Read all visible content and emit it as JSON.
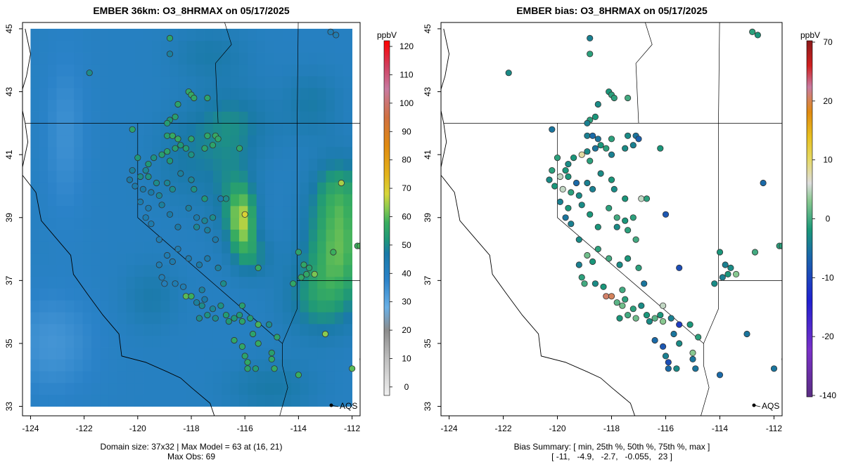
{
  "chart_data": [
    {
      "type": "heatmap",
      "title": "EMBER 36km: O3_8HRMAX on 05/17/2025",
      "xlim": [
        -124.3,
        -111.7
      ],
      "ylim": [
        32.7,
        45.2
      ],
      "x_ticks": [
        -124,
        -122,
        -120,
        -118,
        -116,
        -114,
        -112
      ],
      "x_tick_labels": [
        "-124",
        "-122",
        "-120",
        "-118",
        "-116",
        "-114",
        "-112"
      ],
      "y_ticks": [
        33,
        35,
        37,
        39,
        41,
        43,
        45
      ],
      "y_tick_labels": [
        "33",
        "35",
        "37",
        "39",
        "41",
        "43",
        "45"
      ],
      "colorbar": {
        "unit": "ppbV",
        "range": [
          -3,
          122
        ],
        "ticks": [
          0,
          10,
          20,
          30,
          40,
          50,
          60,
          70,
          80,
          90,
          100,
          110,
          120
        ],
        "tick_labels": [
          "0",
          "10",
          "20",
          "30",
          "40",
          "50",
          "60",
          "70",
          "80",
          "90",
          "100",
          "110",
          "120"
        ],
        "stops": [
          [
            -3,
            "#f0f0f0"
          ],
          [
            10,
            "#bebebe"
          ],
          [
            20,
            "#8c8c8c"
          ],
          [
            28,
            "#6ab0e6"
          ],
          [
            38,
            "#2a82c8"
          ],
          [
            47,
            "#1a7aa8"
          ],
          [
            52,
            "#1f9878"
          ],
          [
            58,
            "#3aae5e"
          ],
          [
            63,
            "#8acb50"
          ],
          [
            68,
            "#d7d63a"
          ],
          [
            75,
            "#e3b21a"
          ],
          [
            85,
            "#e08a10"
          ],
          [
            95,
            "#d07040"
          ],
          [
            105,
            "#c87aa0"
          ],
          [
            113,
            "#d04060"
          ],
          [
            122,
            "#ff0000"
          ]
        ]
      },
      "model_field": {
        "base_value": 40,
        "hotspots": [
          {
            "lon": -116.1,
            "lat": 38.9,
            "sx": 0.5,
            "sy": 1.0,
            "amp": 21
          },
          {
            "lon": -116.5,
            "lat": 39.8,
            "sx": 0.9,
            "sy": 1.5,
            "amp": 8
          },
          {
            "lon": -115.7,
            "lat": 37.8,
            "sx": 0.7,
            "sy": 0.7,
            "amp": 9
          },
          {
            "lon": -112.5,
            "lat": 38.0,
            "sx": 1.2,
            "sy": 1.5,
            "amp": 18
          },
          {
            "lon": -112.5,
            "lat": 39.8,
            "sx": 1.0,
            "sy": 1.2,
            "amp": 13
          },
          {
            "lon": -113.2,
            "lat": 36.4,
            "sx": 1.3,
            "sy": 1.2,
            "amp": 11
          },
          {
            "lon": -116.5,
            "lat": 42.0,
            "sx": 1.5,
            "sy": 1.2,
            "amp": 9
          },
          {
            "lon": -117.3,
            "lat": 44.2,
            "sx": 1.4,
            "sy": 0.8,
            "amp": 6
          },
          {
            "lon": -118.2,
            "lat": 40.8,
            "sx": 1.2,
            "sy": 1.4,
            "amp": 6
          },
          {
            "lon": -119.5,
            "lat": 36.5,
            "sx": 1.0,
            "sy": 1.0,
            "amp": 6
          },
          {
            "lon": -115.0,
            "lat": 33.6,
            "sx": 1.6,
            "sy": 0.8,
            "amp": 7
          },
          {
            "lon": -113.5,
            "lat": 42.6,
            "sx": 1.0,
            "sy": 1.0,
            "amp": 7
          },
          {
            "lon": -122.7,
            "lat": 41.6,
            "sx": 0.8,
            "sy": 2.6,
            "amp": -5
          },
          {
            "lon": -123.2,
            "lat": 35.0,
            "sx": 1.6,
            "sy": 1.6,
            "amp": -6
          }
        ]
      },
      "annotations": [
        "AQS"
      ],
      "caption": [
        "Domain size: 37x32 | Max Model = 63 at (16, 21)",
        "Max Obs: 69"
      ]
    },
    {
      "type": "scatter",
      "title": "EMBER bias: O3_8HRMAX on 05/17/2025",
      "xlim": [
        -124.3,
        -111.7
      ],
      "ylim": [
        32.7,
        45.2
      ],
      "x_ticks": [
        -124,
        -122,
        -120,
        -118,
        -116,
        -114,
        -112
      ],
      "x_tick_labels": [
        "-124",
        "-122",
        "-120",
        "-118",
        "-116",
        "-114",
        "-112"
      ],
      "y_ticks": [
        33,
        35,
        37,
        39,
        41,
        43,
        45
      ],
      "y_tick_labels": [
        "33",
        "35",
        "37",
        "39",
        "41",
        "43",
        "45"
      ],
      "colorbar": {
        "unit": "ppbV",
        "ticks": [
          -140,
          -20,
          -10,
          0,
          10,
          20,
          70
        ],
        "tick_labels": [
          "-140",
          "-20",
          "-10",
          "0",
          "10",
          "20",
          "70"
        ],
        "stops": [
          [
            0,
            "#5a2d82"
          ],
          [
            0.13,
            "#7a30c8"
          ],
          [
            0.27,
            "#2020d0"
          ],
          [
            0.4,
            "#1a6aa8"
          ],
          [
            0.47,
            "#1a9878"
          ],
          [
            0.55,
            "#88c890"
          ],
          [
            0.6,
            "#dddddd"
          ],
          [
            0.67,
            "#e6d860"
          ],
          [
            0.73,
            "#e8c020"
          ],
          [
            0.8,
            "#e08a10"
          ],
          [
            0.87,
            "#c87aa0"
          ],
          [
            0.93,
            "#d02020"
          ],
          [
            1.0,
            "#8a1a1a"
          ]
        ]
      },
      "annotations": [
        "AQS"
      ],
      "caption": [
        "Bias Summary: [ min, 25th %, 50th %, 75th %, max ]",
        "[ -11,   -4.9,   -2.7,   -0.055,   23 ]"
      ],
      "bias_summary": {
        "min": -11,
        "p25": -4.9,
        "p50": -2.7,
        "p75": -0.055,
        "max": 23
      }
    }
  ],
  "stations": [
    {
      "lon": -118.8,
      "lat": 44.7,
      "obs": 55,
      "bias": -4
    },
    {
      "lon": -118.8,
      "lat": 44.2,
      "obs": 48,
      "bias": -1
    },
    {
      "lon": -112.8,
      "lat": 44.9,
      "obs": 44,
      "bias": -1
    },
    {
      "lon": -112.6,
      "lat": 44.8,
      "obs": 44,
      "bias": -2
    },
    {
      "lon": -121.8,
      "lat": 43.6,
      "obs": 50,
      "bias": -3
    },
    {
      "lon": -118.1,
      "lat": 43.0,
      "obs": 56,
      "bias": -2
    },
    {
      "lon": -118.0,
      "lat": 42.9,
      "obs": 57,
      "bias": -1
    },
    {
      "lon": -118.5,
      "lat": 42.6,
      "obs": 55,
      "bias": -3
    },
    {
      "lon": -118.6,
      "lat": 42.2,
      "obs": 54,
      "bias": -2
    },
    {
      "lon": -118.8,
      "lat": 42.1,
      "obs": 52,
      "bias": -1
    },
    {
      "lon": -118.9,
      "lat": 42.0,
      "obs": 53,
      "bias": -4
    },
    {
      "lon": -117.9,
      "lat": 42.8,
      "obs": 56,
      "bias": -1
    },
    {
      "lon": -117.4,
      "lat": 42.8,
      "obs": 55,
      "bias": 0
    },
    {
      "lon": -120.2,
      "lat": 41.8,
      "obs": 55,
      "bias": -5
    },
    {
      "lon": -118.9,
      "lat": 41.6,
      "obs": 54,
      "bias": -4
    },
    {
      "lon": -118.7,
      "lat": 41.6,
      "obs": 57,
      "bias": -6
    },
    {
      "lon": -118.5,
      "lat": 41.5,
      "obs": 57,
      "bias": -5
    },
    {
      "lon": -118.0,
      "lat": 41.5,
      "obs": 55,
      "bias": -1
    },
    {
      "lon": -117.4,
      "lat": 41.6,
      "obs": 56,
      "bias": -3
    },
    {
      "lon": -117.1,
      "lat": 41.6,
      "obs": 57,
      "bias": -5
    },
    {
      "lon": -117.0,
      "lat": 41.5,
      "obs": 56,
      "bias": -7
    },
    {
      "lon": -117.2,
      "lat": 41.3,
      "obs": 55,
      "bias": -4
    },
    {
      "lon": -117.5,
      "lat": 41.2,
      "obs": 55,
      "bias": -3
    },
    {
      "lon": -118.6,
      "lat": 41.2,
      "obs": 54,
      "bias": -5
    },
    {
      "lon": -118.4,
      "lat": 41.3,
      "obs": 52,
      "bias": -2
    },
    {
      "lon": -118.2,
      "lat": 41.2,
      "obs": 53,
      "bias": -1
    },
    {
      "lon": -118.0,
      "lat": 41.0,
      "obs": 51,
      "bias": -4
    },
    {
      "lon": -116.2,
      "lat": 41.2,
      "obs": 56,
      "bias": -2
    },
    {
      "lon": -119.1,
      "lat": 41.0,
      "obs": 54,
      "bias": 8
    },
    {
      "lon": -118.9,
      "lat": 41.1,
      "obs": 55,
      "bias": -3
    },
    {
      "lon": -118.8,
      "lat": 40.8,
      "obs": 52,
      "bias": -1
    },
    {
      "lon": -119.4,
      "lat": 40.9,
      "obs": 51,
      "bias": -2
    },
    {
      "lon": -120.0,
      "lat": 40.9,
      "obs": 52,
      "bias": -1
    },
    {
      "lon": -119.6,
      "lat": 40.7,
      "obs": 52,
      "bias": -3
    },
    {
      "lon": -119.7,
      "lat": 40.5,
      "obs": 49,
      "bias": -2
    },
    {
      "lon": -119.9,
      "lat": 40.3,
      "obs": 50,
      "bias": 5
    },
    {
      "lon": -120.2,
      "lat": 40.5,
      "obs": 48,
      "bias": -1
    },
    {
      "lon": -120.3,
      "lat": 40.2,
      "obs": 47,
      "bias": -3
    },
    {
      "lon": -120.1,
      "lat": 40.0,
      "obs": 46,
      "bias": -2
    },
    {
      "lon": -119.6,
      "lat": 40.3,
      "obs": 51,
      "bias": -2
    },
    {
      "lon": -119.3,
      "lat": 40.1,
      "obs": 50,
      "bias": -6
    },
    {
      "lon": -118.9,
      "lat": 40.1,
      "obs": 49,
      "bias": -4
    },
    {
      "lon": -118.4,
      "lat": 40.4,
      "obs": 48,
      "bias": -3
    },
    {
      "lon": -118.0,
      "lat": 40.2,
      "obs": 49,
      "bias": -2
    },
    {
      "lon": -119.8,
      "lat": 39.9,
      "obs": 47,
      "bias": 5
    },
    {
      "lon": -119.5,
      "lat": 39.8,
      "obs": 47,
      "bias": -1
    },
    {
      "lon": -119.2,
      "lat": 39.7,
      "obs": 49,
      "bias": -3
    },
    {
      "lon": -118.7,
      "lat": 39.9,
      "obs": 50,
      "bias": -4
    },
    {
      "lon": -117.9,
      "lat": 39.9,
      "obs": 51,
      "bias": -3
    },
    {
      "lon": -117.5,
      "lat": 39.6,
      "obs": 52,
      "bias": -2
    },
    {
      "lon": -116.9,
      "lat": 39.6,
      "obs": 46,
      "bias": 5
    },
    {
      "lon": -116.7,
      "lat": 39.6,
      "obs": 50,
      "bias": -1
    },
    {
      "lon": -119.9,
      "lat": 39.5,
      "obs": 46,
      "bias": -4
    },
    {
      "lon": -119.6,
      "lat": 39.3,
      "obs": 45,
      "bias": -2
    },
    {
      "lon": -119.7,
      "lat": 39.0,
      "obs": 45,
      "bias": -5
    },
    {
      "lon": -119.1,
      "lat": 39.4,
      "obs": 48,
      "bias": -3
    },
    {
      "lon": -118.8,
      "lat": 39.1,
      "obs": 47,
      "bias": -2
    },
    {
      "lon": -118.1,
      "lat": 39.3,
      "obs": 48,
      "bias": -1
    },
    {
      "lon": -117.8,
      "lat": 39.0,
      "obs": 46,
      "bias": 0
    },
    {
      "lon": -117.5,
      "lat": 38.9,
      "obs": 49,
      "bias": -2
    },
    {
      "lon": -117.2,
      "lat": 39.0,
      "obs": 50,
      "bias": -1
    },
    {
      "lon": -116.0,
      "lat": 39.1,
      "obs": 69,
      "bias": -8
    },
    {
      "lon": -119.5,
      "lat": 38.8,
      "obs": 45,
      "bias": -4
    },
    {
      "lon": -118.5,
      "lat": 38.7,
      "obs": 47,
      "bias": -2
    },
    {
      "lon": -117.8,
      "lat": 38.7,
      "obs": 49,
      "bias": -3
    },
    {
      "lon": -117.4,
      "lat": 38.6,
      "obs": 48,
      "bias": -1
    },
    {
      "lon": -117.1,
      "lat": 38.3,
      "obs": 46,
      "bias": 0
    },
    {
      "lon": -119.2,
      "lat": 38.3,
      "obs": 44,
      "bias": -3
    },
    {
      "lon": -118.5,
      "lat": 38.0,
      "obs": 44,
      "bias": -1
    },
    {
      "lon": -118.9,
      "lat": 37.8,
      "obs": 44,
      "bias": 2
    },
    {
      "lon": -118.1,
      "lat": 37.7,
      "obs": 45,
      "bias": 0
    },
    {
      "lon": -117.7,
      "lat": 37.5,
      "obs": 47,
      "bias": -3
    },
    {
      "lon": -117.4,
      "lat": 37.7,
      "obs": 46,
      "bias": -2
    },
    {
      "lon": -117.0,
      "lat": 37.4,
      "obs": 48,
      "bias": -1
    },
    {
      "lon": -118.7,
      "lat": 37.6,
      "obs": 45,
      "bias": -2
    },
    {
      "lon": -119.2,
      "lat": 37.5,
      "obs": 44,
      "bias": -4
    },
    {
      "lon": -115.5,
      "lat": 37.4,
      "obs": 57,
      "bias": -9
    },
    {
      "lon": -119.1,
      "lat": 37.1,
      "obs": 43,
      "bias": -1
    },
    {
      "lon": -119.0,
      "lat": 36.9,
      "obs": 42,
      "bias": 0
    },
    {
      "lon": -118.6,
      "lat": 36.9,
      "obs": 44,
      "bias": -3
    },
    {
      "lon": -118.3,
      "lat": 36.8,
      "obs": 44,
      "bias": -2
    },
    {
      "lon": -117.6,
      "lat": 36.7,
      "obs": 48,
      "bias": 0
    },
    {
      "lon": -116.8,
      "lat": 36.9,
      "obs": 50,
      "bias": -5
    },
    {
      "lon": -118.2,
      "lat": 36.5,
      "obs": 60,
      "bias": 23
    },
    {
      "lon": -118.0,
      "lat": 36.5,
      "obs": 58,
      "bias": 21
    },
    {
      "lon": -117.8,
      "lat": 36.3,
      "obs": 48,
      "bias": 1
    },
    {
      "lon": -117.6,
      "lat": 36.2,
      "obs": 50,
      "bias": 2
    },
    {
      "lon": -117.5,
      "lat": 36.4,
      "obs": 47,
      "bias": -1
    },
    {
      "lon": -117.2,
      "lat": 36.1,
      "obs": 49,
      "bias": -1
    },
    {
      "lon": -116.9,
      "lat": 36.2,
      "obs": 51,
      "bias": -3
    },
    {
      "lon": -117.1,
      "lat": 35.8,
      "obs": 50,
      "bias": 2
    },
    {
      "lon": -116.7,
      "lat": 35.9,
      "obs": 53,
      "bias": -2
    },
    {
      "lon": -116.4,
      "lat": 35.8,
      "obs": 52,
      "bias": 1
    },
    {
      "lon": -116.1,
      "lat": 36.2,
      "obs": 54,
      "bias": 5
    },
    {
      "lon": -116.2,
      "lat": 35.9,
      "obs": 52,
      "bias": -2
    },
    {
      "lon": -115.8,
      "lat": 35.8,
      "obs": 53,
      "bias": -4
    },
    {
      "lon": -115.5,
      "lat": 35.6,
      "obs": 59,
      "bias": -11
    },
    {
      "lon": -115.1,
      "lat": 35.6,
      "obs": 50,
      "bias": -2
    },
    {
      "lon": -116.6,
      "lat": 35.7,
      "obs": 52,
      "bias": -3
    },
    {
      "lon": -116.1,
      "lat": 35.7,
      "obs": 55,
      "bias": 3
    },
    {
      "lon": -117.4,
      "lat": 35.9,
      "obs": 51,
      "bias": 0
    },
    {
      "lon": -117.7,
      "lat": 35.8,
      "obs": 50,
      "bias": -2
    },
    {
      "lon": -115.7,
      "lat": 35.3,
      "obs": 55,
      "bias": -5
    },
    {
      "lon": -116.4,
      "lat": 35.1,
      "obs": 56,
      "bias": -6
    },
    {
      "lon": -115.5,
      "lat": 35.0,
      "obs": 57,
      "bias": -3
    },
    {
      "lon": -116.1,
      "lat": 34.9,
      "obs": 56,
      "bias": -8
    },
    {
      "lon": -116.0,
      "lat": 34.6,
      "obs": 55,
      "bias": -4
    },
    {
      "lon": -115.9,
      "lat": 34.4,
      "obs": 56,
      "bias": -9
    },
    {
      "lon": -115.9,
      "lat": 34.2,
      "obs": 55,
      "bias": -6
    },
    {
      "lon": -115.6,
      "lat": 34.2,
      "obs": 53,
      "bias": -3
    },
    {
      "lon": -115.0,
      "lat": 34.5,
      "obs": 56,
      "bias": -5
    },
    {
      "lon": -114.9,
      "lat": 34.2,
      "obs": 57,
      "bias": -5
    },
    {
      "lon": -115.0,
      "lat": 34.7,
      "obs": 54,
      "bias": 3
    },
    {
      "lon": -114.8,
      "lat": 35.2,
      "obs": 55,
      "bias": -1
    },
    {
      "lon": -113.0,
      "lat": 35.3,
      "obs": 63,
      "bias": -5
    },
    {
      "lon": -114.0,
      "lat": 34.0,
      "obs": 58,
      "bias": -6
    },
    {
      "lon": -112.0,
      "lat": 34.2,
      "obs": 60,
      "bias": -5
    },
    {
      "lon": -111.6,
      "lat": 34.5,
      "obs": 58,
      "bias": -4
    },
    {
      "lon": -114.0,
      "lat": 37.9,
      "obs": 55,
      "bias": -2
    },
    {
      "lon": -113.8,
      "lat": 37.5,
      "obs": 56,
      "bias": -4
    },
    {
      "lon": -113.6,
      "lat": 37.4,
      "obs": 54,
      "bias": -3
    },
    {
      "lon": -113.4,
      "lat": 37.2,
      "obs": 62,
      "bias": 3
    },
    {
      "lon": -113.7,
      "lat": 37.2,
      "obs": 56,
      "bias": -2
    },
    {
      "lon": -113.9,
      "lat": 37.1,
      "obs": 56,
      "bias": -4
    },
    {
      "lon": -112.4,
      "lat": 40.1,
      "obs": 65,
      "bias": -6
    },
    {
      "lon": -111.8,
      "lat": 38.1,
      "obs": 58,
      "bias": -1
    },
    {
      "lon": -111.7,
      "lat": 38.1,
      "obs": 59,
      "bias": -1
    },
    {
      "lon": -112.7,
      "lat": 37.9,
      "obs": 58,
      "bias": 0
    },
    {
      "lon": -114.2,
      "lat": 36.9,
      "obs": 56,
      "bias": -3
    }
  ]
}
